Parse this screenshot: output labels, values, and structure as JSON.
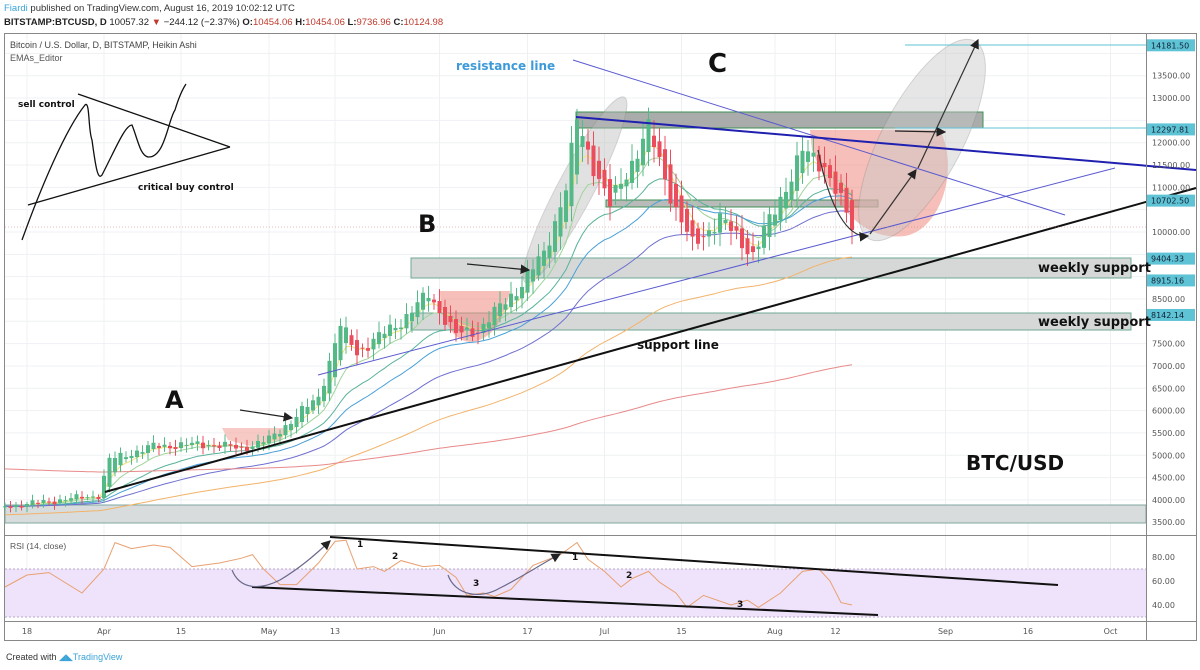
{
  "header": {
    "author": "Fiardi",
    "published": "published on TradingView.com, August 16, 2019 10:02:12 UTC",
    "symbol": "BITSTAMP:BTCUSD, D",
    "last": "10057.32",
    "change": "−244.12 (−2.37%)",
    "o_label": "O:",
    "o": "10454.06",
    "h_label": "H:",
    "h": "10454.06",
    "l_label": "L:",
    "l": "9736.96",
    "c_label": "C:",
    "c": "10124.98"
  },
  "legend": {
    "title": "Bitcoin / U.S. Dollar, D, BITSTAMP, Heikin Ashi",
    "indicator": "EMAs_Editor"
  },
  "annotations": {
    "sell_control": "sell control",
    "critical_buy_control": "critical buy control",
    "wave_a": "A",
    "wave_b": "B",
    "wave_c": "C",
    "resistance_line": "resistance line",
    "support_line": "support line",
    "weekly_support_1": "weekly support",
    "weekly_support_2": "weekly support",
    "pair": "BTC/USD",
    "rsi_marks": [
      "1",
      "2",
      "3",
      "1",
      "2",
      "3"
    ]
  },
  "colors": {
    "up": "#53b987",
    "down": "#eb4d5c",
    "price_label_bg": "#5fc3d6",
    "rsi_line": "#e8a070",
    "rsi_band": "#efe3fb",
    "resistance_text": "#3d9ad9"
  },
  "chart_data": [
    {
      "type": "candlestick",
      "title": "Bitcoin / U.S. Dollar, D, BITSTAMP, Heikin Ashi",
      "price_path": [
        [
          "2019-03-14",
          3850
        ],
        [
          "2019-03-31",
          4100
        ],
        [
          "2019-04-02",
          4900
        ],
        [
          "2019-04-10",
          5200
        ],
        [
          "2019-04-20",
          5250
        ],
        [
          "2019-04-26",
          5150
        ],
        [
          "2019-05-01",
          5350
        ],
        [
          "2019-05-10",
          6300
        ],
        [
          "2019-05-14",
          7900
        ],
        [
          "2019-05-17",
          7300
        ],
        [
          "2019-05-25",
          8000
        ],
        [
          "2019-05-30",
          8600
        ],
        [
          "2019-06-04",
          7700
        ],
        [
          "2019-06-08",
          7800
        ],
        [
          "2019-06-15",
          8700
        ],
        [
          "2019-06-20",
          9500
        ],
        [
          "2019-06-24",
          11000
        ],
        [
          "2019-06-26",
          12500
        ],
        [
          "2019-06-28",
          11800
        ],
        [
          "2019-07-02",
          10600
        ],
        [
          "2019-07-09",
          12300
        ],
        [
          "2019-07-14",
          10500
        ],
        [
          "2019-07-17",
          9700
        ],
        [
          "2019-07-22",
          10300
        ],
        [
          "2019-07-28",
          9500
        ],
        [
          "2019-08-01",
          10500
        ],
        [
          "2019-08-06",
          11800
        ],
        [
          "2019-08-10",
          11500
        ],
        [
          "2019-08-15",
          10100
        ]
      ],
      "yticks": [
        3500,
        4000,
        4500,
        5000,
        5500,
        6000,
        6500,
        7000,
        7500,
        8000,
        8500,
        9000,
        9500,
        10000,
        10500,
        11000,
        11500,
        12000,
        12500,
        13000,
        13500,
        14000
      ],
      "ylim": [
        3300,
        14500
      ],
      "price_labels": [
        "14181.50",
        "12297.81",
        "10702.50",
        "9404.33",
        "8915.16",
        "8142.14"
      ],
      "xticks": [
        [
          "2019-03-18",
          "18"
        ],
        [
          "2019-04-01",
          "Apr"
        ],
        [
          "2019-04-15",
          "15"
        ],
        [
          "2019-05-01",
          "May"
        ],
        [
          "2019-05-13",
          "13"
        ],
        [
          "2019-06-01",
          "Jun"
        ],
        [
          "2019-06-17",
          "17"
        ],
        [
          "2019-07-01",
          "Jul"
        ],
        [
          "2019-07-15",
          "15"
        ],
        [
          "2019-08-01",
          "Aug"
        ],
        [
          "2019-08-12",
          "12"
        ],
        [
          "2019-09-01",
          "Sep"
        ],
        [
          "2019-09-16",
          "16"
        ],
        [
          "2019-10-01",
          "Oct"
        ]
      ],
      "ema_periods": [
        5,
        10,
        20,
        30,
        50,
        100,
        200
      ],
      "grid": true
    },
    {
      "type": "line",
      "title": "RSI (14, close)",
      "ylim": [
        20,
        100
      ],
      "band": [
        30,
        70
      ],
      "yticks": [
        "80.00",
        "60.00",
        "40.00"
      ],
      "yticks_values": [
        80,
        60,
        40
      ],
      "values": [
        [
          "2019-03-14",
          55
        ],
        [
          "2019-03-18",
          65
        ],
        [
          "2019-03-22",
          67
        ],
        [
          "2019-03-28",
          50
        ],
        [
          "2019-04-01",
          70
        ],
        [
          "2019-04-03",
          92
        ],
        [
          "2019-04-06",
          87
        ],
        [
          "2019-04-10",
          90
        ],
        [
          "2019-04-13",
          88
        ],
        [
          "2019-04-17",
          72
        ],
        [
          "2019-04-22",
          75
        ],
        [
          "2019-04-26",
          79
        ],
        [
          "2019-04-28",
          82
        ],
        [
          "2019-04-30",
          70
        ],
        [
          "2019-05-03",
          57
        ],
        [
          "2019-05-06",
          57
        ],
        [
          "2019-05-10",
          75
        ],
        [
          "2019-05-13",
          93
        ],
        [
          "2019-05-15",
          94
        ],
        [
          "2019-05-17",
          70
        ],
        [
          "2019-05-20",
          72
        ],
        [
          "2019-05-22",
          68
        ],
        [
          "2019-05-25",
          77
        ],
        [
          "2019-05-29",
          72
        ],
        [
          "2019-06-01",
          73
        ],
        [
          "2019-06-04",
          63
        ],
        [
          "2019-06-06",
          48
        ],
        [
          "2019-06-09",
          50
        ],
        [
          "2019-06-11",
          47
        ],
        [
          "2019-06-14",
          53
        ],
        [
          "2019-06-18",
          73
        ],
        [
          "2019-06-23",
          82
        ],
        [
          "2019-06-26",
          92
        ],
        [
          "2019-06-28",
          78
        ],
        [
          "2019-07-01",
          68
        ],
        [
          "2019-07-04",
          55
        ],
        [
          "2019-07-06",
          62
        ],
        [
          "2019-07-09",
          68
        ],
        [
          "2019-07-11",
          59
        ],
        [
          "2019-07-14",
          50
        ],
        [
          "2019-07-16",
          38
        ],
        [
          "2019-07-19",
          48
        ],
        [
          "2019-07-24",
          40
        ],
        [
          "2019-07-27",
          44
        ],
        [
          "2019-07-29",
          38
        ],
        [
          "2019-08-02",
          50
        ],
        [
          "2019-08-06",
          68
        ],
        [
          "2019-08-09",
          70
        ],
        [
          "2019-08-11",
          60
        ],
        [
          "2019-08-13",
          42
        ],
        [
          "2019-08-15",
          40
        ]
      ]
    }
  ],
  "footer": {
    "created": "Created with",
    "brand": "TradingView"
  }
}
